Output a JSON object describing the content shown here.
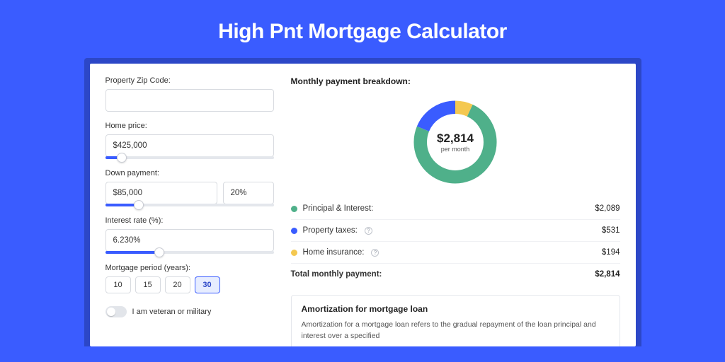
{
  "page": {
    "title": "High Pnt Mortgage Calculator",
    "bg_color": "#3a5cff",
    "card_shadow_bg": "#2c47c7"
  },
  "form": {
    "zip": {
      "label": "Property Zip Code:",
      "value": ""
    },
    "home_price": {
      "label": "Home price:",
      "value": "$425,000",
      "slider_pct": 10
    },
    "down_payment": {
      "label": "Down payment:",
      "amount": "$85,000",
      "percent": "20%",
      "slider_pct": 20
    },
    "interest_rate": {
      "label": "Interest rate (%):",
      "value": "6.230%",
      "slider_pct": 32
    },
    "period": {
      "label": "Mortgage period (years):",
      "options": [
        "10",
        "15",
        "20",
        "30"
      ],
      "selected": "30"
    },
    "veteran": {
      "label": "I am veteran or military",
      "checked": false
    }
  },
  "breakdown": {
    "title": "Monthly payment breakdown:",
    "center_amount": "$2,814",
    "center_sub": "per month",
    "donut": {
      "ring_bg": "#e9ecf2",
      "slices": [
        {
          "key": "home_insurance",
          "color": "#f4c850",
          "fraction": 0.069
        },
        {
          "key": "principal_interest",
          "color": "#4fb08a",
          "fraction": 0.742
        },
        {
          "key": "property_taxes",
          "color": "#3a5cff",
          "fraction": 0.189
        }
      ]
    },
    "items": [
      {
        "label": "Principal & Interest:",
        "color": "#4fb08a",
        "value": "$2,089",
        "info": false
      },
      {
        "label": "Property taxes:",
        "color": "#3a5cff",
        "value": "$531",
        "info": true
      },
      {
        "label": "Home insurance:",
        "color": "#f4c850",
        "value": "$194",
        "info": true
      }
    ],
    "total": {
      "label": "Total monthly payment:",
      "value": "$2,814"
    }
  },
  "amortization": {
    "title": "Amortization for mortgage loan",
    "text": "Amortization for a mortgage loan refers to the gradual repayment of the loan principal and interest over a specified"
  }
}
